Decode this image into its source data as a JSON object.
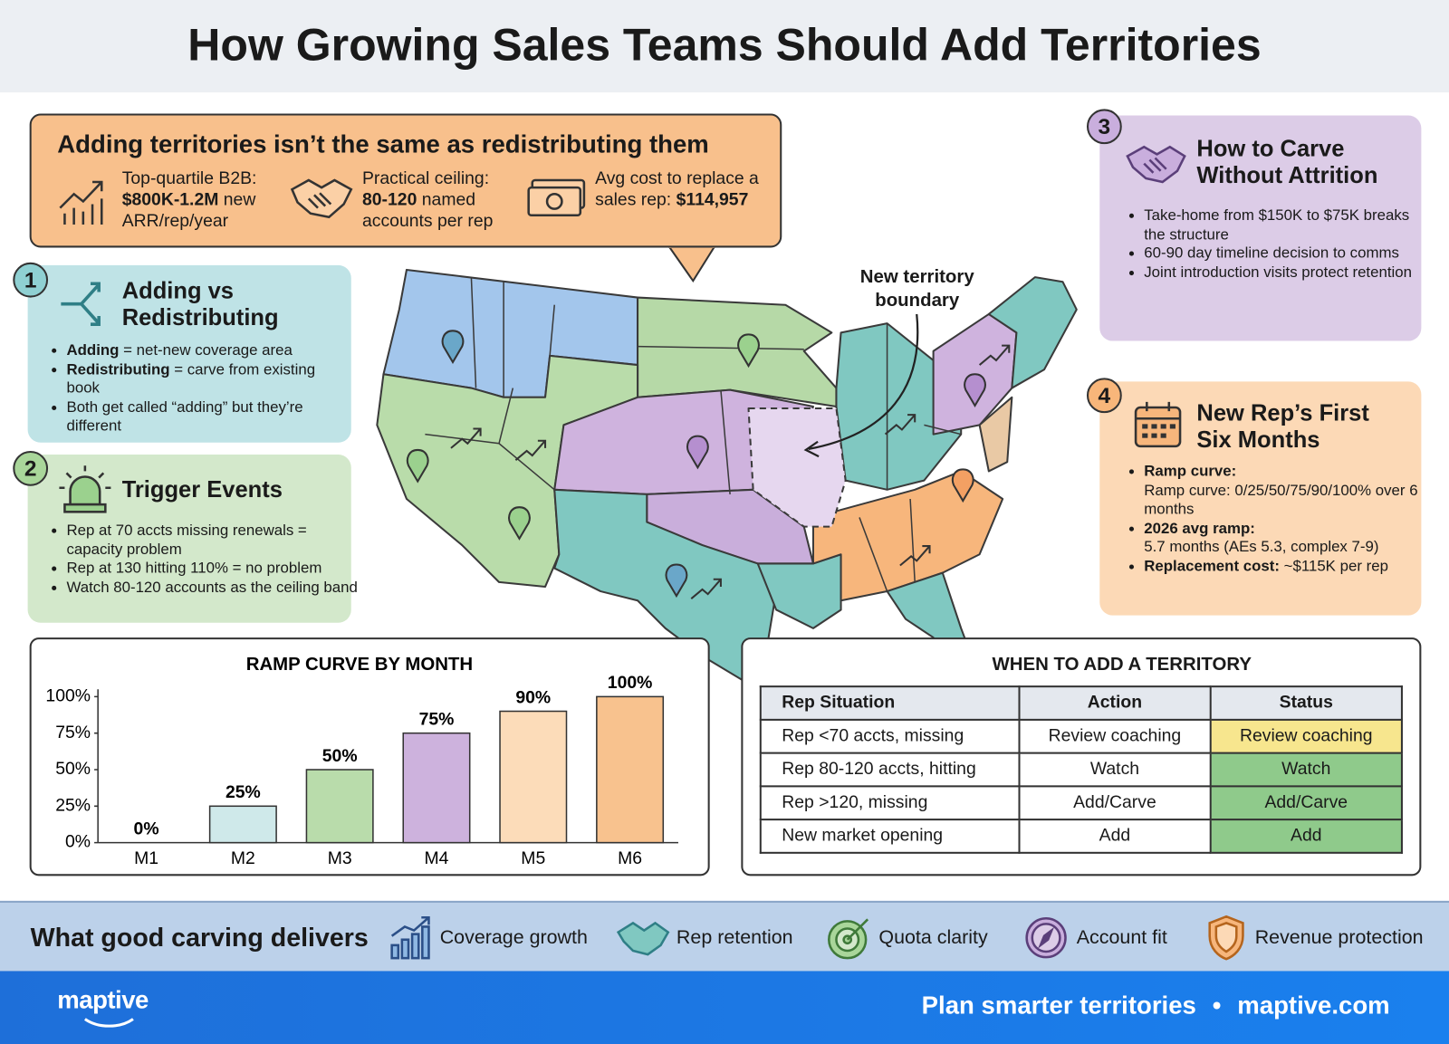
{
  "header": {
    "title": "How Growing Sales Teams Should Add Territories"
  },
  "callout": {
    "title": "Adding territories isn’t the same as redistributing them",
    "stats": [
      {
        "text": "Top-quartile B2B:",
        "bold": "$800K-1.2M",
        "rest": " new ARR/rep/year"
      },
      {
        "text": "Practical ceiling:",
        "bold": "80-120",
        "rest": " named accounts per rep"
      },
      {
        "text": "Avg cost to replace a sales rep:",
        "bold": "$114,957"
      }
    ]
  },
  "sections": [
    {
      "number": "1",
      "title": "Adding vs Redistributing",
      "bullets": [
        {
          "bold": "Adding",
          "text": " = net-new coverage area"
        },
        {
          "bold": "Redistributing",
          "text": " = carve from existing book"
        },
        {
          "text": "Both get called “adding” but they’re different"
        }
      ]
    },
    {
      "number": "2",
      "title": "Trigger Events",
      "bullets": [
        {
          "text": "Rep at 70 accts missing renewals = capacity problem"
        },
        {
          "text": "Rep at 130 hitting 110% = no problem"
        },
        {
          "text": "Watch 80-120 accounts as the ceiling band"
        }
      ]
    },
    {
      "number": "3",
      "title": "How to Carve Without Attrition",
      "bullets": [
        {
          "text": "Take-home from $150K to $75K breaks the structure"
        },
        {
          "text": "60-90 day timeline decision to comms"
        },
        {
          "text": "Joint introduction visits protect retention"
        }
      ]
    },
    {
      "number": "4",
      "title": "New Rep’s First Six Months",
      "bullets": [
        {
          "bold": "Ramp curve:",
          "text": "Ramp curve: 0/25/50/75/90/100% over 6 months"
        },
        {
          "bold": "2026 avg ramp:",
          "text": "5.7 months (AEs 5.3, complex 7-9)"
        },
        {
          "bold": "Replacement cost:",
          "text": " ~$115K per rep"
        }
      ]
    }
  ],
  "map": {
    "annotation": "New territory boundary"
  },
  "chart_data": {
    "type": "bar",
    "title": "RAMP CURVE BY MONTH",
    "categories": [
      "M1",
      "M2",
      "M3",
      "M4",
      "M5",
      "M6"
    ],
    "values": [
      0,
      25,
      50,
      75,
      90,
      100
    ],
    "value_labels": [
      "0%",
      "25%",
      "50%",
      "75%",
      "90%",
      "100%"
    ],
    "colors": [
      "#cfe9ea",
      "#cfe9ea",
      "#b9dcab",
      "#cdb2dd",
      "#fcdcb9",
      "#f8c28e"
    ],
    "ylim": [
      0,
      100
    ],
    "yticks": [
      {
        "value": 0,
        "label": "0%"
      },
      {
        "value": 25,
        "label": "25%"
      },
      {
        "value": 50,
        "label": "50%"
      },
      {
        "value": 75,
        "label": "75%"
      },
      {
        "value": 100,
        "label": "100%"
      }
    ],
    "grid": false
  },
  "table": {
    "title": "WHEN TO ADD A TERRITORY",
    "columns": [
      "Rep Situation",
      "Action",
      "Status"
    ],
    "rows": [
      [
        "Rep <70 accts, missing",
        "Review coaching",
        "Review coaching"
      ],
      [
        "Rep 80-120 accts, hitting",
        "Watch",
        "Watch"
      ],
      [
        "Rep >120, missing",
        "Add/Carve",
        "Add/Carve"
      ],
      [
        "New market opening",
        "Add",
        "Add"
      ]
    ],
    "status_colors": [
      "#f7e68e",
      "#8fca8b",
      "#8fca8b",
      "#8fca8b"
    ]
  },
  "footer": {
    "title": "What good carving delivers",
    "items": [
      "Coverage growth",
      "Rep retention",
      "Quota clarity",
      "Account fit",
      "Revenue protection"
    ]
  },
  "bottom": {
    "logo": "maptive",
    "tagline": "Plan smarter territories",
    "separator": "•",
    "site": "maptive.com"
  }
}
